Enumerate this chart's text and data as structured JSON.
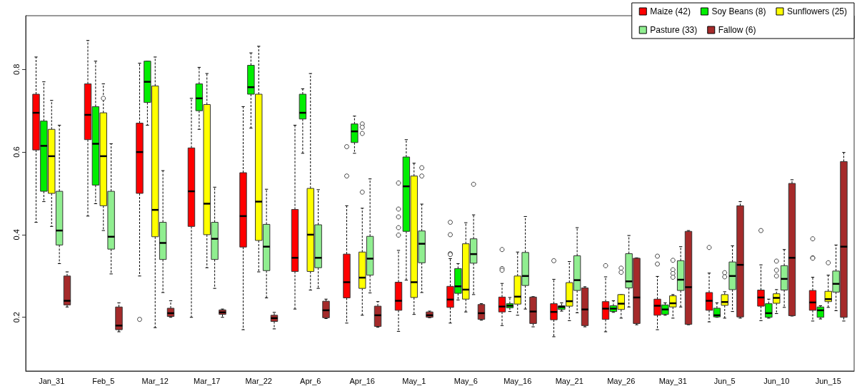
{
  "chart_data": {
    "type": "box",
    "categories": [
      "Jan_31",
      "Feb_5",
      "Mar_12",
      "Mar_17",
      "Mar_22",
      "Apr_6",
      "Apr_16",
      "May_1",
      "May_6",
      "May_16",
      "May_21",
      "May_26",
      "May_31",
      "Jun_5",
      "Jun_10",
      "Jun_15"
    ],
    "ylim": [
      0.07,
      0.93
    ],
    "yticks": [
      0.2,
      0.4,
      0.6,
      0.8
    ],
    "legend": "top right",
    "grid": false,
    "series": [
      {
        "name": "Maize (42)",
        "color": "#ff0000",
        "boxes": [
          {
            "low": 0.43,
            "q1": 0.605,
            "median": 0.695,
            "q3": 0.74,
            "high": 0.83
          },
          {
            "low": 0.445,
            "q1": 0.63,
            "median": 0.69,
            "q3": 0.765,
            "high": 0.87
          },
          {
            "low": 0.3,
            "q1": 0.5,
            "median": 0.6,
            "q3": 0.67,
            "high": 0.815,
            "outliers": [
              0.195
            ]
          },
          {
            "low": 0.2,
            "q1": 0.42,
            "median": 0.505,
            "q3": 0.61,
            "high": 0.73
          },
          {
            "low": 0.17,
            "q1": 0.37,
            "median": 0.445,
            "q3": 0.55,
            "high": 0.71
          },
          {
            "low": 0.22,
            "q1": 0.311,
            "median": 0.344,
            "q3": 0.461,
            "high": 0.665
          },
          {
            "low": 0.186,
            "q1": 0.247,
            "median": 0.285,
            "q3": 0.353,
            "high": 0.47,
            "outliers": [
              0.613,
              0.542
            ]
          },
          {
            "low": 0.166,
            "q1": 0.217,
            "median": 0.24,
            "q3": 0.285,
            "high": 0.362,
            "outliers": [
              0.525,
              0.462,
              0.443,
              0.417,
              0.399
            ]
          },
          {
            "low": 0.186,
            "q1": 0.224,
            "median": 0.243,
            "q3": 0.275,
            "high": 0.342,
            "outliers": [
              0.43,
              0.4,
              0.354,
              0.352
            ]
          },
          {
            "low": 0.18,
            "q1": 0.213,
            "median": 0.226,
            "q3": 0.249,
            "high": 0.282,
            "outliers": [
              0.364,
              0.318,
              0.314
            ]
          },
          {
            "low": 0.153,
            "q1": 0.194,
            "median": 0.213,
            "q3": 0.233,
            "high": 0.292,
            "outliers": [
              0.337
            ]
          },
          {
            "low": 0.165,
            "q1": 0.195,
            "median": 0.221,
            "q3": 0.238,
            "high": 0.298,
            "outliers": [
              0.325
            ]
          },
          {
            "low": 0.17,
            "q1": 0.205,
            "median": 0.228,
            "q3": 0.244,
            "high": 0.299,
            "outliers": [
              0.348,
              0.329
            ]
          },
          {
            "low": 0.189,
            "q1": 0.217,
            "median": 0.24,
            "q3": 0.26,
            "high": 0.307,
            "outliers": [
              0.369
            ]
          },
          {
            "low": 0.192,
            "q1": 0.227,
            "median": 0.248,
            "q3": 0.266,
            "high": 0.327,
            "outliers": [
              0.41
            ]
          },
          {
            "low": 0.191,
            "q1": 0.217,
            "median": 0.236,
            "q3": 0.265,
            "high": 0.297,
            "outliers": [
              0.39,
              0.344,
              0.343
            ]
          }
        ]
      },
      {
        "name": "Soy Beans (8)",
        "color": "#00ee00",
        "boxes": [
          {
            "low": 0.48,
            "q1": 0.505,
            "median": 0.615,
            "q3": 0.675,
            "high": 0.77
          },
          {
            "low": 0.475,
            "q1": 0.52,
            "median": 0.62,
            "q3": 0.71,
            "high": 0.82
          },
          {
            "low": 0.665,
            "q1": 0.72,
            "median": 0.77,
            "q3": 0.82,
            "high": 0.82
          },
          {
            "low": 0.655,
            "q1": 0.7,
            "median": 0.73,
            "q3": 0.765,
            "high": 0.805
          },
          {
            "low": 0.658,
            "q1": 0.74,
            "median": 0.757,
            "q3": 0.81,
            "high": 0.84
          },
          {
            "low": 0.597,
            "q1": 0.68,
            "median": 0.695,
            "q3": 0.74,
            "high": 0.753
          },
          {
            "low": 0.597,
            "q1": 0.623,
            "median": 0.65,
            "q3": 0.668,
            "high": 0.687
          },
          {
            "low": 0.29,
            "q1": 0.408,
            "median": 0.517,
            "q3": 0.588,
            "high": 0.63
          },
          {
            "low": 0.242,
            "q1": 0.258,
            "median": 0.275,
            "q3": 0.318,
            "high": 0.33
          },
          {
            "low": 0.214,
            "q1": 0.223,
            "median": 0.228,
            "q3": 0.233,
            "high": 0.248
          },
          {
            "low": 0.215,
            "q1": 0.219,
            "median": 0.225,
            "q3": 0.228,
            "high": 0.235
          },
          {
            "low": 0.212,
            "q1": 0.214,
            "median": 0.221,
            "q3": 0.228,
            "high": 0.24
          },
          {
            "low": 0.205,
            "q1": 0.207,
            "median": 0.219,
            "q3": 0.23,
            "high": 0.235
          },
          {
            "low": 0.2,
            "q1": 0.201,
            "median": 0.205,
            "q3": 0.222,
            "high": 0.235
          },
          {
            "low": 0.198,
            "q1": 0.2,
            "median": 0.21,
            "q3": 0.233,
            "high": 0.244
          },
          {
            "low": 0.196,
            "q1": 0.2,
            "median": 0.217,
            "q3": 0.225,
            "high": 0.228
          }
        ]
      },
      {
        "name": "Sunflowers (25)",
        "color": "#ffff00",
        "boxes": [
          {
            "low": 0.42,
            "q1": 0.5,
            "median": 0.59,
            "q3": 0.655,
            "high": 0.725
          },
          {
            "low": 0.41,
            "q1": 0.47,
            "median": 0.59,
            "q3": 0.695,
            "high": 0.765,
            "outliers": [
              0.73
            ]
          },
          {
            "low": 0.175,
            "q1": 0.395,
            "median": 0.46,
            "q3": 0.76,
            "high": 0.83
          },
          {
            "low": 0.32,
            "q1": 0.4,
            "median": 0.475,
            "q3": 0.715,
            "high": 0.79
          },
          {
            "low": 0.31,
            "q1": 0.386,
            "median": 0.48,
            "q3": 0.74,
            "high": 0.856
          },
          {
            "low": 0.266,
            "q1": 0.311,
            "median": 0.4,
            "q3": 0.512,
            "high": 0.79
          },
          {
            "low": 0.205,
            "q1": 0.27,
            "median": 0.296,
            "q3": 0.358,
            "high": 0.464,
            "outliers": [
              0.668,
              0.66,
              0.645,
              0.503
            ]
          },
          {
            "low": 0.207,
            "q1": 0.248,
            "median": 0.285,
            "q3": 0.542,
            "high": 0.573
          },
          {
            "low": 0.213,
            "q1": 0.244,
            "median": 0.267,
            "q3": 0.378,
            "high": 0.429
          },
          {
            "low": 0.205,
            "q1": 0.232,
            "median": 0.25,
            "q3": 0.3,
            "high": 0.358
          },
          {
            "low": 0.192,
            "q1": 0.227,
            "median": 0.239,
            "q3": 0.284,
            "high": 0.335
          },
          {
            "low": 0.198,
            "q1": 0.219,
            "median": 0.233,
            "q3": 0.255,
            "high": 0.255,
            "outliers": [
              0.319,
              0.309
            ]
          },
          {
            "low": 0.198,
            "q1": 0.225,
            "median": 0.234,
            "q3": 0.252,
            "high": 0.255,
            "outliers": [
              0.338,
              0.315,
              0.306,
              0.297
            ]
          },
          {
            "low": 0.198,
            "q1": 0.229,
            "median": 0.237,
            "q3": 0.255,
            "high": 0.262,
            "outliers": [
              0.308,
              0.298
            ]
          },
          {
            "low": 0.209,
            "q1": 0.234,
            "median": 0.247,
            "q3": 0.257,
            "high": 0.267,
            "outliers": [
              0.336,
              0.314,
              0.3
            ]
          },
          {
            "low": 0.224,
            "q1": 0.238,
            "median": 0.244,
            "q3": 0.263,
            "high": 0.302,
            "outliers": [
              0.332
            ]
          }
        ]
      },
      {
        "name": "Pasture (33)",
        "color": "#90ee90",
        "boxes": [
          {
            "low": 0.33,
            "q1": 0.375,
            "median": 0.41,
            "q3": 0.505,
            "high": 0.665
          },
          {
            "low": 0.305,
            "q1": 0.365,
            "median": 0.395,
            "q3": 0.505,
            "high": 0.62
          },
          {
            "low": 0.26,
            "q1": 0.34,
            "median": 0.38,
            "q3": 0.43,
            "high": 0.555
          },
          {
            "low": 0.27,
            "q1": 0.34,
            "median": 0.39,
            "q3": 0.43,
            "high": 0.515
          },
          {
            "low": 0.247,
            "q1": 0.313,
            "median": 0.371,
            "q3": 0.425,
            "high": 0.51
          },
          {
            "low": 0.27,
            "q1": 0.32,
            "median": 0.344,
            "q3": 0.424,
            "high": 0.509
          },
          {
            "low": 0.259,
            "q1": 0.302,
            "median": 0.342,
            "q3": 0.396,
            "high": 0.535
          },
          {
            "low": 0.26,
            "q1": 0.332,
            "median": 0.378,
            "q3": 0.409,
            "high": 0.474,
            "outliers": [
              0.562,
              0.542
            ]
          },
          {
            "low": 0.255,
            "q1": 0.331,
            "median": 0.353,
            "q3": 0.39,
            "high": 0.448,
            "outliers": [
              0.522
            ]
          },
          {
            "low": 0.22,
            "q1": 0.277,
            "median": 0.3,
            "q3": 0.357,
            "high": 0.444
          },
          {
            "low": 0.211,
            "q1": 0.265,
            "median": 0.29,
            "q3": 0.349,
            "high": 0.417
          },
          {
            "low": 0.225,
            "q1": 0.271,
            "median": 0.287,
            "q3": 0.354,
            "high": 0.398
          },
          {
            "low": 0.225,
            "q1": 0.265,
            "median": 0.291,
            "q3": 0.337,
            "high": 0.371
          },
          {
            "low": 0.214,
            "q1": 0.267,
            "median": 0.3,
            "q3": 0.334,
            "high": 0.373
          },
          {
            "low": 0.224,
            "q1": 0.266,
            "median": 0.293,
            "q3": 0.325,
            "high": 0.364
          },
          {
            "low": 0.216,
            "q1": 0.261,
            "median": 0.281,
            "q3": 0.312,
            "high": 0.375
          }
        ]
      },
      {
        "name": "Fallow (6)",
        "color": "#a52a2a",
        "boxes": [
          {
            "low": 0.225,
            "q1": 0.23,
            "median": 0.24,
            "q3": 0.3,
            "high": 0.31
          },
          {
            "low": 0.165,
            "q1": 0.17,
            "median": 0.18,
            "q3": 0.225,
            "high": 0.235
          },
          {
            "low": 0.2,
            "q1": 0.202,
            "median": 0.21,
            "q3": 0.222,
            "high": 0.24
          },
          {
            "low": 0.2,
            "q1": 0.207,
            "median": 0.212,
            "q3": 0.218,
            "high": 0.22
          },
          {
            "low": 0.172,
            "q1": 0.19,
            "median": 0.198,
            "q3": 0.205,
            "high": 0.212
          },
          {
            "low": 0.197,
            "q1": 0.199,
            "median": 0.217,
            "q3": 0.239,
            "high": 0.244
          },
          {
            "low": 0.176,
            "q1": 0.178,
            "median": 0.205,
            "q3": 0.227,
            "high": 0.238
          },
          {
            "low": 0.199,
            "q1": 0.2,
            "median": 0.205,
            "q3": 0.213,
            "high": 0.215
          },
          {
            "low": 0.193,
            "q1": 0.195,
            "median": 0.21,
            "q3": 0.231,
            "high": 0.233
          },
          {
            "low": 0.177,
            "q1": 0.185,
            "median": 0.214,
            "q3": 0.249,
            "high": 0.25
          },
          {
            "low": 0.177,
            "q1": 0.18,
            "median": 0.219,
            "q3": 0.271,
            "high": 0.274
          },
          {
            "low": 0.182,
            "q1": 0.185,
            "median": 0.248,
            "q3": 0.343,
            "high": 0.344
          },
          {
            "low": 0.182,
            "q1": 0.183,
            "median": 0.273,
            "q3": 0.408,
            "high": 0.41
          },
          {
            "low": 0.198,
            "q1": 0.201,
            "median": 0.327,
            "q3": 0.47,
            "high": 0.48
          },
          {
            "low": 0.203,
            "q1": 0.204,
            "median": 0.344,
            "q3": 0.524,
            "high": 0.533
          },
          {
            "low": 0.191,
            "q1": 0.2,
            "median": 0.371,
            "q3": 0.577,
            "high": 0.599
          }
        ]
      }
    ]
  }
}
